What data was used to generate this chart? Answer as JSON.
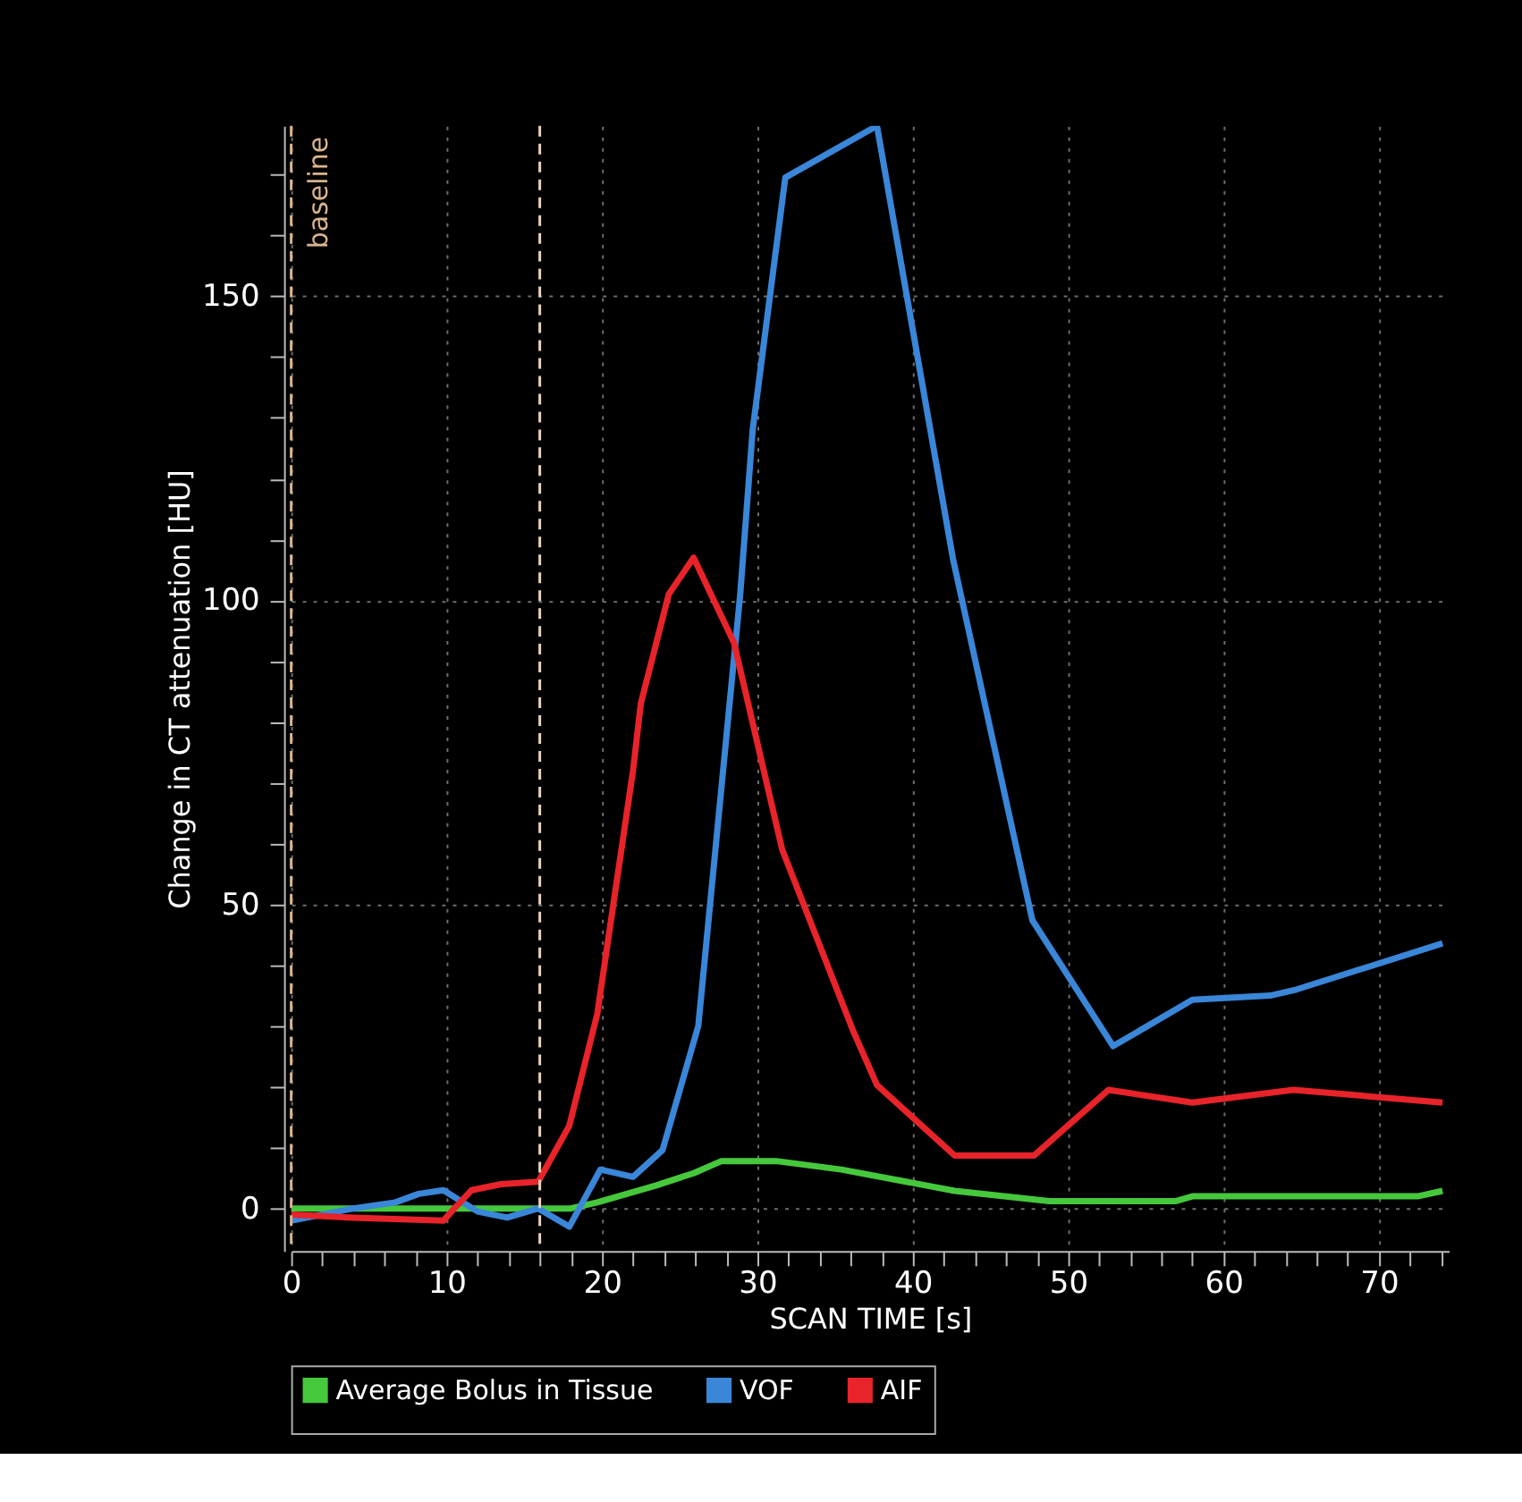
{
  "chart_data": {
    "type": "line",
    "xlabel": "SCAN TIME [s]",
    "ylabel": "Change in CT attenuation [HU]",
    "xlim": [
      0,
      74.5
    ],
    "ylim": [
      -7,
      178
    ],
    "xticks": [
      0,
      {
        "value": 2,
        "label": null
      },
      {
        "value": 4,
        "label": null
      },
      {
        "value": 6,
        "label": null
      },
      {
        "value": 8,
        "label": null
      },
      10,
      {
        "value": 12,
        "label": null
      },
      {
        "value": 14,
        "label": null
      },
      {
        "value": 16,
        "label": null
      },
      {
        "value": 18,
        "label": null
      },
      20,
      {
        "value": 22,
        "label": null
      },
      {
        "value": 24,
        "label": null
      },
      {
        "value": 26,
        "label": null
      },
      {
        "value": 28,
        "label": null
      },
      30,
      {
        "value": 32,
        "label": null
      },
      {
        "value": 34,
        "label": null
      },
      {
        "value": 36,
        "label": null
      },
      {
        "value": 38,
        "label": null
      },
      40,
      {
        "value": 42,
        "label": null
      },
      {
        "value": 44,
        "label": null
      },
      {
        "value": 46,
        "label": null
      },
      {
        "value": 48,
        "label": null
      },
      50,
      {
        "value": 52,
        "label": null
      },
      {
        "value": 54,
        "label": null
      },
      {
        "value": 56,
        "label": null
      },
      {
        "value": 58,
        "label": null
      },
      60,
      {
        "value": 62,
        "label": null
      },
      {
        "value": 64,
        "label": null
      },
      {
        "value": 66,
        "label": null
      },
      {
        "value": 68,
        "label": null
      },
      70,
      {
        "value": 72,
        "label": null
      },
      {
        "value": 74,
        "label": null
      }
    ],
    "yticks": [
      0,
      {
        "value": 10,
        "label": null
      },
      {
        "value": 20,
        "label": null
      },
      {
        "value": 30,
        "label": null
      },
      {
        "value": 40,
        "label": null
      },
      50,
      {
        "value": 60,
        "label": null
      },
      {
        "value": 70,
        "label": null
      },
      {
        "value": 80,
        "label": null
      },
      {
        "value": 90,
        "label": null
      },
      100,
      {
        "value": 110,
        "label": null
      },
      {
        "value": 120,
        "label": null
      },
      {
        "value": 130,
        "label": null
      },
      {
        "value": 140,
        "label": null
      },
      150,
      {
        "value": 160,
        "label": null
      },
      {
        "value": 170,
        "label": null
      }
    ],
    "grid": true,
    "legend": "bottom",
    "marker": "none",
    "line_style": "solid",
    "ref_lines": [
      {
        "axis": "x",
        "value": 0,
        "label": "baseline",
        "color": "#d9b48f",
        "line_style": "dashed"
      },
      {
        "axis": "x",
        "value": 16,
        "label": null,
        "color": "#e8d2bc",
        "line_style": "dashed"
      }
    ],
    "series": [
      {
        "name": "Average Bolus in Tissue",
        "color": "#46c83c",
        "x": [
          0,
          10,
          16,
          18,
          19.7,
          23.5,
          25.9,
          27.7,
          31.2,
          35.4,
          42.7,
          48.8,
          56.9,
          58,
          72.5,
          74.1
        ],
        "values": [
          0,
          0,
          0,
          0,
          1,
          3.8,
          5.8,
          7.8,
          7.8,
          6.4,
          2.9,
          1.2,
          1.2,
          2,
          2,
          2.9
        ]
      },
      {
        "name": "VOF",
        "color": "#3a86d8",
        "x": [
          0,
          4,
          6.7,
          8.2,
          9.8,
          12,
          13.9,
          15.9,
          17.9,
          19.9,
          22,
          23.9,
          26.2,
          28.9,
          29.7,
          31.8,
          37.7,
          42.6,
          47.7,
          52.9,
          58,
          63,
          64.7,
          74.1
        ],
        "values": [
          -2,
          0,
          1,
          2.4,
          3,
          -0.5,
          -1.5,
          0,
          -3,
          6.4,
          5.2,
          9.6,
          30,
          101,
          128,
          169.5,
          178,
          106.7,
          47.4,
          26.7,
          34.3,
          35,
          36,
          43.6
        ]
      },
      {
        "name": "AIF",
        "color": "#e8232a",
        "x": [
          0,
          4,
          9.8,
          10.5,
          11.6,
          13.5,
          15.9,
          17.9,
          19.7,
          22,
          22.5,
          24.3,
          25.9,
          28.5,
          31.6,
          36.2,
          37.7,
          42.7,
          47.8,
          52.6,
          58,
          64.5,
          74.1
        ],
        "values": [
          -1,
          -1.5,
          -2,
          0,
          3,
          4,
          4.4,
          13.6,
          32,
          72,
          83,
          101,
          107,
          93,
          59,
          29,
          20.3,
          8.7,
          8.7,
          19.5,
          17.4,
          19.5,
          17.4
        ]
      }
    ]
  }
}
